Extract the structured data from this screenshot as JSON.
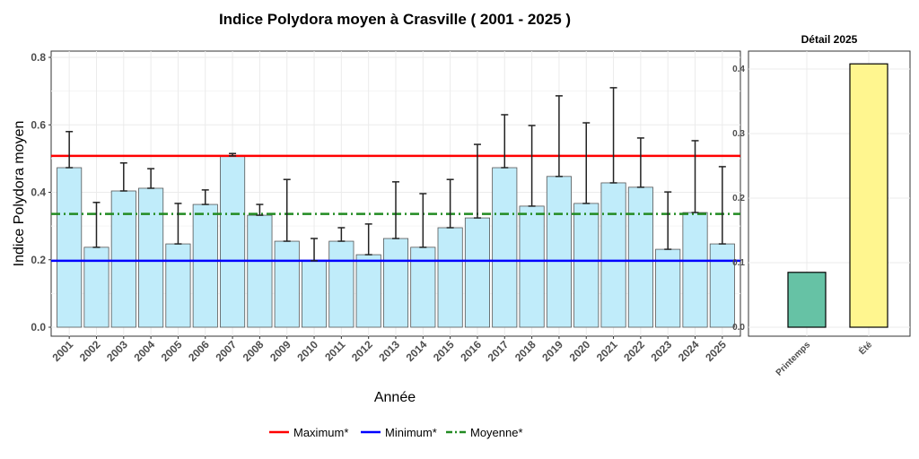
{
  "chart_data": [
    {
      "type": "bar",
      "title": "Indice Polydora moyen à Crasville ( 2001 - 2025 )",
      "xlabel": "Année",
      "ylabel": "Indice Polydora moyen",
      "ylim": [
        0,
        0.8
      ],
      "yticks": [
        "0.0",
        "0.2",
        "0.4",
        "0.6",
        "0.8"
      ],
      "grid": true,
      "categories": [
        "2001",
        "2002",
        "2003",
        "2004",
        "2005",
        "2006",
        "2007",
        "2008",
        "2009",
        "2010",
        "2011",
        "2012",
        "2013",
        "2014",
        "2015",
        "2016",
        "2017",
        "2018",
        "2019",
        "2020",
        "2021",
        "2022",
        "2023",
        "2024",
        "2025"
      ],
      "values": [
        0.473,
        0.237,
        0.404,
        0.412,
        0.247,
        0.364,
        0.508,
        0.332,
        0.255,
        0.197,
        0.255,
        0.215,
        0.263,
        0.237,
        0.295,
        0.324,
        0.473,
        0.359,
        0.447,
        0.367,
        0.428,
        0.415,
        0.231,
        0.34,
        0.247
      ],
      "error_upper": [
        0.58,
        0.37,
        0.487,
        0.47,
        0.367,
        0.407,
        0.515,
        0.364,
        0.438,
        0.263,
        0.295,
        0.306,
        0.431,
        0.396,
        0.438,
        0.542,
        0.63,
        0.598,
        0.686,
        0.606,
        0.71,
        0.561,
        0.401,
        0.553,
        0.476
      ],
      "bar_color": "#c0ecfa",
      "reference_lines": [
        {
          "name": "Maximum*",
          "value": 0.508,
          "color": "#ff0000",
          "style": "solid"
        },
        {
          "name": "Minimum*",
          "value": 0.197,
          "color": "#0000ff",
          "style": "solid"
        },
        {
          "name": "Moyenne*",
          "value": 0.336,
          "color": "#228b22",
          "style": "dashdot"
        }
      ],
      "legend_position": "bottom"
    },
    {
      "type": "bar",
      "title": "Détail 2025",
      "ylim": [
        0,
        0.42
      ],
      "yticks": [
        "0.0",
        "0.1",
        "0.2",
        "0.3",
        "0.4"
      ],
      "categories": [
        "Printemps",
        "Été"
      ],
      "values": [
        0.085,
        0.408
      ],
      "colors": [
        "#66c2a5",
        "#fff68f"
      ]
    }
  ]
}
